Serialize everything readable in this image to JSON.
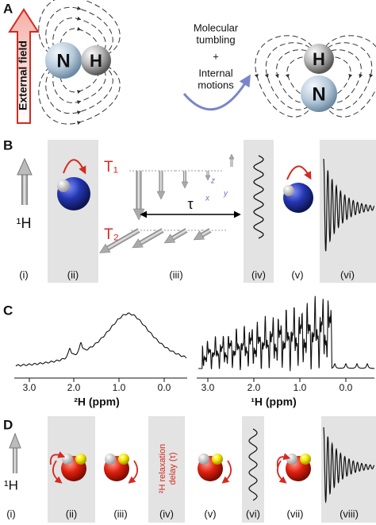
{
  "panel_a": {
    "label": "A",
    "external_field": "External field",
    "n_atom": "N",
    "h_atom": "H",
    "tumbling_lines": [
      "Molecular",
      "tumbling"
    ],
    "plus": "+",
    "internal_lines": [
      "Internal",
      "motions"
    ]
  },
  "panel_b": {
    "label": "B",
    "proton": "¹H",
    "t1": "T₁",
    "t2": "T₂",
    "tau": "τ",
    "axes": [
      "x",
      "y",
      "z"
    ],
    "steps": [
      "(i)",
      "(ii)",
      "(iii)",
      "(iv)",
      "(v)",
      "(vi)"
    ]
  },
  "panel_c": {
    "label": "C",
    "left_ticks": [
      "3.0",
      "2.0",
      "1.0",
      "0.0"
    ],
    "left_axis_label": "²H (ppm)",
    "right_ticks": [
      "3.0",
      "2.0",
      "1.0",
      "0.0"
    ],
    "right_axis_label": "¹H (ppm)"
  },
  "panel_d": {
    "label": "D",
    "proton": "¹H",
    "delay_lines": [
      "²H relaxation",
      "delay (τ)"
    ],
    "steps": [
      "(i)",
      "(ii)",
      "(iii)",
      "(iv)",
      "(v)",
      "(vi)",
      "(vii)",
      "(viii)"
    ]
  }
}
